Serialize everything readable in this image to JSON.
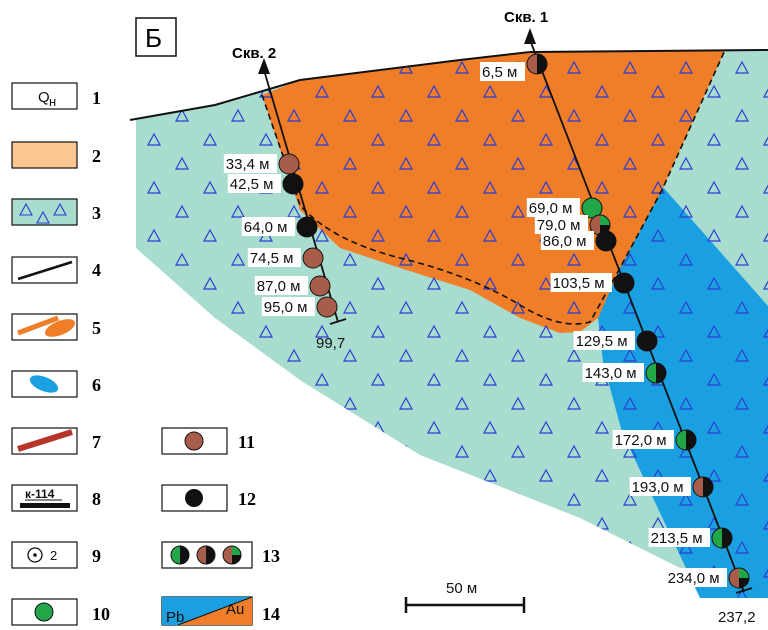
{
  "panel_label": "Б",
  "wells": {
    "well1": {
      "name": "Скв. 1",
      "end_depth": "237,2"
    },
    "well2": {
      "name": "Скв. 2",
      "end_depth": "99,7"
    }
  },
  "well1_samples": [
    {
      "depth": "6,5 м",
      "type": "13",
      "colors": [
        "brown",
        "black"
      ]
    },
    {
      "depth": "69,0 м",
      "type": "10",
      "colors": [
        "green"
      ]
    },
    {
      "depth": "79,0 м",
      "type": "13",
      "colors": [
        "brown",
        "green",
        "black"
      ]
    },
    {
      "depth": "86,0 м",
      "type": "12",
      "colors": [
        "black"
      ]
    },
    {
      "depth": "103,5 м",
      "type": "12",
      "colors": [
        "black"
      ]
    },
    {
      "depth": "129,5 м",
      "type": "12",
      "colors": [
        "black"
      ]
    },
    {
      "depth": "143,0 м",
      "type": "13",
      "colors": [
        "green",
        "black"
      ]
    },
    {
      "depth": "172,0 м",
      "type": "13",
      "colors": [
        "green",
        "black"
      ]
    },
    {
      "depth": "193,0 м",
      "type": "13",
      "colors": [
        "brown",
        "black"
      ]
    },
    {
      "depth": "213,5 м",
      "type": "13",
      "colors": [
        "green",
        "black"
      ]
    },
    {
      "depth": "234,0 м",
      "type": "13",
      "colors": [
        "brown",
        "green",
        "black"
      ]
    }
  ],
  "well2_samples": [
    {
      "depth": "33,4 м",
      "type": "11",
      "colors": [
        "brown"
      ]
    },
    {
      "depth": "42,5 м",
      "type": "12",
      "colors": [
        "black"
      ]
    },
    {
      "depth": "64,0 м",
      "type": "12",
      "colors": [
        "black"
      ]
    },
    {
      "depth": "74,5 м",
      "type": "11",
      "colors": [
        "brown"
      ]
    },
    {
      "depth": "87,0 м",
      "type": "11",
      "colors": [
        "brown"
      ]
    },
    {
      "depth": "95,0 м",
      "type": "11",
      "colors": [
        "brown"
      ]
    }
  ],
  "scale_bar": "50 м",
  "legend": [
    {
      "num": "1",
      "symbol": "Q",
      "symbol_sub": "н"
    },
    {
      "num": "2"
    },
    {
      "num": "3"
    },
    {
      "num": "4"
    },
    {
      "num": "5"
    },
    {
      "num": "6"
    },
    {
      "num": "7"
    },
    {
      "num": "8",
      "symbol": "к-114"
    },
    {
      "num": "9",
      "symbol": "2"
    },
    {
      "num": "10"
    },
    {
      "num": "11"
    },
    {
      "num": "12"
    },
    {
      "num": "13"
    },
    {
      "num": "14",
      "pb": "Pb",
      "au": "Au"
    }
  ],
  "colors": {
    "host_rock": "#a8dccf",
    "orange_body": "#f07e28",
    "blue_zone": "#1aa0e0",
    "beige": "#fbc68f",
    "brown_marker": "#a85d4a",
    "green_marker": "#22a748",
    "black_marker": "#111111",
    "red_dyke": "#b5352a",
    "triangle_stroke": "#2a3bd6"
  }
}
